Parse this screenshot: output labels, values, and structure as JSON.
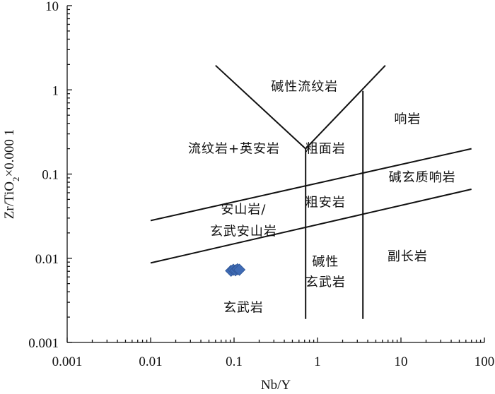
{
  "chart_data": {
    "type": "scatter",
    "xlabel": "Nb/Y",
    "ylabel_main": "Zr/TiO",
    "ylabel_sub": "2",
    "ylabel_suffix": "×0.000 1",
    "x_scale": "log",
    "y_scale": "log",
    "xlim": [
      0.001,
      100
    ],
    "ylim": [
      0.001,
      10
    ],
    "grid": false,
    "x_ticks": [
      {
        "value": 0.001,
        "label": "0.001"
      },
      {
        "value": 0.01,
        "label": "0.01"
      },
      {
        "value": 0.1,
        "label": "0.1"
      },
      {
        "value": 1,
        "label": "1"
      },
      {
        "value": 10,
        "label": "10"
      },
      {
        "value": 100,
        "label": "100"
      }
    ],
    "y_ticks": [
      {
        "value": 0.001,
        "label": "0.001"
      },
      {
        "value": 0.01,
        "label": "0.01"
      },
      {
        "value": 0.1,
        "label": "0.1"
      },
      {
        "value": 1,
        "label": "1"
      },
      {
        "value": 10,
        "label": "10"
      }
    ],
    "marker_color": "#3f6bb5",
    "points": [
      {
        "x": 0.092,
        "y": 0.0071
      },
      {
        "x": 0.098,
        "y": 0.0073
      },
      {
        "x": 0.104,
        "y": 0.0072
      },
      {
        "x": 0.11,
        "y": 0.0074
      },
      {
        "x": 0.116,
        "y": 0.0073
      }
    ],
    "boundaries": [
      {
        "points": [
          [
            0.06,
            1.95
          ],
          [
            0.72,
            0.2
          ]
        ]
      },
      {
        "points": [
          [
            0.72,
            0.2
          ],
          [
            6.5,
            1.95
          ]
        ]
      },
      {
        "points": [
          [
            0.72,
            0.2
          ],
          [
            0.72,
            0.0019
          ]
        ]
      },
      {
        "points": [
          [
            3.5,
            0.97
          ],
          [
            3.5,
            0.0019
          ]
        ]
      },
      {
        "points": [
          [
            0.01,
            0.028
          ],
          [
            70,
            0.2
          ]
        ]
      },
      {
        "points": [
          [
            0.01,
            0.0088
          ],
          [
            70,
            0.066
          ]
        ]
      }
    ],
    "fields": [
      {
        "name": "碱性流纹岩",
        "x": 0.7,
        "y": 1.1
      },
      {
        "name": "流纹岩+英安岩",
        "x": 0.1,
        "y": 0.2
      },
      {
        "name": "响岩",
        "x": 12,
        "y": 0.45
      },
      {
        "name": "粗面岩",
        "x": 1.25,
        "y": 0.2
      },
      {
        "name": "碱玄质响岩",
        "x": 18,
        "y": 0.092
      },
      {
        "name": "粗安岩",
        "x": 1.25,
        "y": 0.046
      },
      {
        "name": "安山岩/",
        "x": 0.13,
        "y": 0.038
      },
      {
        "name": "玄武安山岩",
        "x": 0.13,
        "y": 0.021
      },
      {
        "name": "副长岩",
        "x": 12,
        "y": 0.0105
      },
      {
        "name": "碱性",
        "x": 1.25,
        "y": 0.0091
      },
      {
        "name": "玄武岩",
        "x": 1.25,
        "y": 0.0052
      },
      {
        "name": "玄武岩",
        "x": 0.13,
        "y": 0.0026
      }
    ]
  }
}
